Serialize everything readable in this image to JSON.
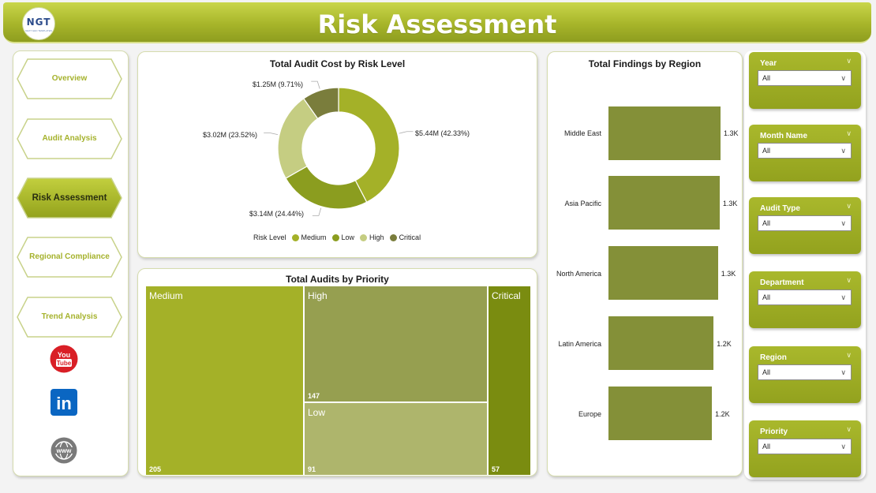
{
  "header": {
    "title": "Risk Assessment",
    "logo_text": "NGT",
    "logo_sub": "NEXT GEN TEMPLATES"
  },
  "nav": {
    "items": [
      {
        "label": "Overview",
        "active": false
      },
      {
        "label": "Audit Analysis",
        "active": false
      },
      {
        "label": "Risk Assessment",
        "active": true
      },
      {
        "label": "Regional Compliance",
        "active": false
      },
      {
        "label": "Trend Analysis",
        "active": false
      }
    ],
    "social": {
      "youtube_line1": "You",
      "youtube_line2": "Tube",
      "linkedin": "in",
      "web": "www"
    }
  },
  "colors": {
    "medium": "#a4b128",
    "low": "#8b9d1f",
    "high": "#c5cd82",
    "critical": "#7a7d3c"
  },
  "chart_data": [
    {
      "type": "pie",
      "title": "Total Audit Cost by Risk Level",
      "legend_title": "Risk Level",
      "categories": [
        "Medium",
        "Low",
        "High",
        "Critical"
      ],
      "values": [
        5.44,
        3.14,
        3.02,
        1.25
      ],
      "percent": [
        42.33,
        24.44,
        23.52,
        9.71
      ],
      "data_labels": [
        "$5.44M (42.33%)",
        "$3.14M (24.44%)",
        "$3.02M (23.52%)",
        "$1.25M (9.71%)"
      ],
      "legend_position": "bottom"
    },
    {
      "type": "table",
      "title": "Total Audits by Priority",
      "categories": [
        "Medium",
        "High",
        "Low",
        "Critical"
      ],
      "values": [
        205,
        147,
        91,
        57
      ]
    },
    {
      "type": "bar",
      "title": "Total Findings by Region",
      "categories": [
        "Middle East",
        "Asia Pacific",
        "North America",
        "Latin America",
        "Europe"
      ],
      "values": [
        1300,
        1290,
        1270,
        1220,
        1200
      ],
      "data_labels": [
        "1.3K",
        "1.3K",
        "1.3K",
        "1.2K",
        "1.2K"
      ]
    }
  ],
  "filters": [
    {
      "label": "Year",
      "value": "All"
    },
    {
      "label": "Month Name",
      "value": "All"
    },
    {
      "label": "Audit Type",
      "value": "All"
    },
    {
      "label": "Department",
      "value": "All"
    },
    {
      "label": "Region",
      "value": "All"
    },
    {
      "label": "Priority",
      "value": "All"
    }
  ]
}
